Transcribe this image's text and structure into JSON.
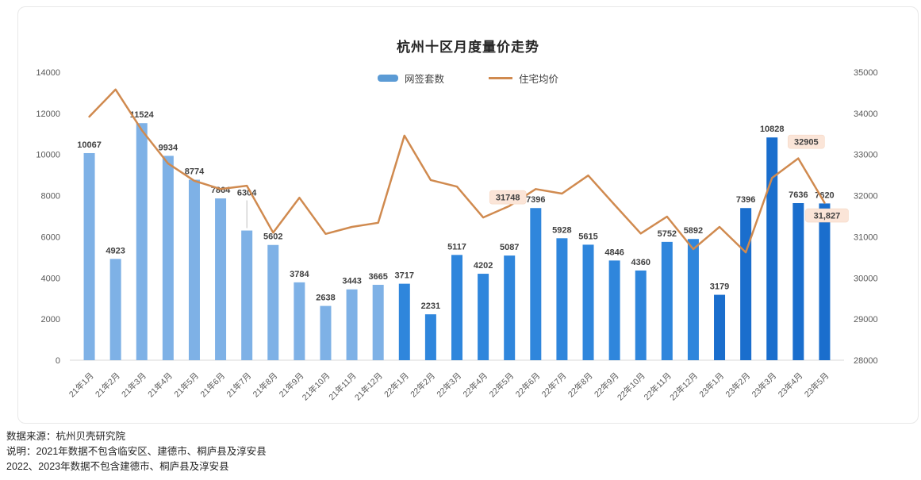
{
  "title": "杭州十区月度量价走势",
  "legend": {
    "bar_label": "网签套数",
    "line_label": "住宅均价"
  },
  "chart_data": {
    "type": "bar+line combo, dual y-axis",
    "categories": [
      "21年1月",
      "21年2月",
      "21年3月",
      "21年4月",
      "21年5月",
      "21年6月",
      "21年7月",
      "21年8月",
      "21年9月",
      "21年10月",
      "21年11月",
      "21年12月",
      "22年1月",
      "22年2月",
      "22年3月",
      "22年4月",
      "22年5月",
      "22年6月",
      "22年7月",
      "22年8月",
      "22年9月",
      "22年10月",
      "22年11月",
      "22年12月",
      "23年1月",
      "23年2月",
      "23年3月",
      "23年4月",
      "23年5月"
    ],
    "series": [
      {
        "name": "网签套数",
        "type": "bar",
        "axis": "left",
        "values": [
          10067,
          4923,
          11524,
          9934,
          8774,
          7864,
          6304,
          5602,
          3784,
          2638,
          3443,
          3665,
          3717,
          2231,
          5117,
          4202,
          5087,
          7396,
          5928,
          5615,
          4846,
          4360,
          5752,
          5892,
          3179,
          7396,
          10828,
          7636,
          7620
        ]
      },
      {
        "name": "住宅均价",
        "type": "line",
        "axis": "right",
        "values": [
          33920,
          34580,
          33590,
          32780,
          32360,
          32160,
          32240,
          31100,
          31950,
          31070,
          31240,
          31340,
          33460,
          32380,
          32220,
          31470,
          31748,
          32160,
          32050,
          32490,
          31780,
          31080,
          31490,
          30700,
          31240,
          30620,
          32430,
          32905,
          31827
        ]
      }
    ],
    "left_axis": {
      "min": 0,
      "max": 14000,
      "step": 2000,
      "ticks": [
        "0",
        "2000",
        "4000",
        "6000",
        "8000",
        "10000",
        "12000",
        "14000"
      ]
    },
    "right_axis": {
      "min": 28000,
      "max": 35000,
      "step": 1000,
      "ticks": [
        "28000",
        "29000",
        "30000",
        "31000",
        "32000",
        "33000",
        "34000",
        "35000"
      ]
    },
    "line_point_labels": [
      {
        "index": 16,
        "text": "31748"
      },
      {
        "index": 27,
        "text": "32905"
      },
      {
        "index": 28,
        "text": "31,827"
      }
    ],
    "bar_label_leader_lines": [
      6
    ],
    "grid": false,
    "legend_position": "top-center"
  },
  "colors": {
    "bar_2021": "#7EB1E6",
    "bar_2022": "#2F86DC",
    "bar_2023": "#1A6ECD",
    "legend_bar": "#5B9BD5",
    "line": "#D08A4F",
    "line_label_bg": "#FBE5D8",
    "line_label_border": "#F4D2BB",
    "axis_text": "#595959",
    "data_label": "#404040",
    "baseline": "#D9D9D9",
    "leader_line": "#BFBFBF"
  },
  "footer": {
    "source": "数据来源：杭州贝壳研究院",
    "note1": "说明：2021年数据不包含临安区、建德市、桐庐县及淳安县",
    "note2": "2022、2023年数据不包含建德市、桐庐县及淳安县"
  }
}
